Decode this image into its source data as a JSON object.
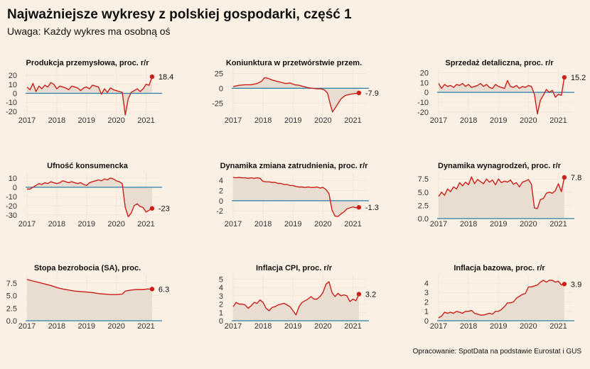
{
  "header": {
    "title": "Najważniejsze wykresy z polskiej gospodarki, część 1",
    "subtitle": "Uwaga: Każdy wykres ma osobną oś"
  },
  "source": "Opracowanie: SpotData na podstawie Eurostat i GUS",
  "colors": {
    "line": "#cc1f1a",
    "area": "#e8ddd0",
    "zero_line": "#2a7fa7",
    "grid": "#f3e6d8",
    "background": "#fbf0e4"
  },
  "chart_data": [
    {
      "type": "area",
      "title": "Produkcja przemysłowa, proc. r/r",
      "x_ticks": [
        "2017",
        "2018",
        "2019",
        "2020",
        "2021"
      ],
      "y_ticks": [
        -20,
        -10,
        0,
        10,
        20
      ],
      "ylim": [
        -24,
        24
      ],
      "x": [
        2017.0,
        2017.1,
        2017.2,
        2017.3,
        2017.4,
        2017.5,
        2017.6,
        2017.7,
        2017.8,
        2017.9,
        2018.0,
        2018.1,
        2018.2,
        2018.3,
        2018.4,
        2018.5,
        2018.6,
        2018.7,
        2018.8,
        2018.9,
        2019.0,
        2019.1,
        2019.2,
        2019.3,
        2019.4,
        2019.5,
        2019.6,
        2019.7,
        2019.8,
        2019.9,
        2020.0,
        2020.1,
        2020.2,
        2020.3,
        2020.4,
        2020.5,
        2020.6,
        2020.7,
        2020.8,
        2020.9,
        2021.0,
        2021.1,
        2021.2
      ],
      "y": [
        7,
        4,
        11,
        2,
        8,
        5,
        9,
        7,
        12,
        10,
        5,
        8,
        7,
        6,
        4,
        8,
        7,
        6,
        3,
        6,
        7,
        5,
        9,
        8,
        7,
        -1,
        5,
        1,
        6,
        4,
        3,
        2,
        1,
        -24,
        -6,
        1,
        3,
        5,
        2,
        5,
        10,
        9,
        18.4
      ],
      "last_label": "18.4"
    },
    {
      "type": "area",
      "title": "Koniunktura w przetwórstwie przem.",
      "x_ticks": [
        "2017",
        "2018",
        "2019",
        "2020",
        "2021"
      ],
      "y_ticks": [
        -25,
        0,
        25
      ],
      "ylim": [
        -45,
        28
      ],
      "x": [
        2017.0,
        2017.2,
        2017.4,
        2017.6,
        2017.8,
        2017.95,
        2018.05,
        2018.15,
        2018.3,
        2018.45,
        2018.6,
        2018.75,
        2018.9,
        2019.05,
        2019.2,
        2019.35,
        2019.5,
        2019.65,
        2019.8,
        2019.95,
        2020.05,
        2020.15,
        2020.25,
        2020.32,
        2020.45,
        2020.6,
        2020.75,
        2020.9,
        2021.05,
        2021.2
      ],
      "y": [
        3,
        5,
        6,
        6,
        8,
        12,
        18,
        17,
        14,
        12,
        10,
        8,
        9,
        6,
        5,
        3,
        1,
        0,
        -1,
        -1,
        -3,
        -8,
        -28,
        -40,
        -30,
        -18,
        -12,
        -10,
        -9,
        -7.9
      ],
      "last_label": "-7.9"
    },
    {
      "type": "area",
      "title": "Sprzedaż detaliczna, proc. r/r",
      "x_ticks": [
        "2017",
        "2018",
        "2019",
        "2020",
        "2021"
      ],
      "y_ticks": [
        -20,
        -10,
        0,
        10,
        20
      ],
      "ylim": [
        -23,
        21
      ],
      "x": [
        2017.0,
        2017.1,
        2017.2,
        2017.3,
        2017.4,
        2017.5,
        2017.6,
        2017.7,
        2017.8,
        2017.9,
        2018.0,
        2018.1,
        2018.2,
        2018.3,
        2018.4,
        2018.5,
        2018.6,
        2018.7,
        2018.8,
        2018.9,
        2019.0,
        2019.1,
        2019.2,
        2019.3,
        2019.4,
        2019.5,
        2019.6,
        2019.7,
        2019.8,
        2019.9,
        2020.0,
        2020.1,
        2020.2,
        2020.3,
        2020.4,
        2020.5,
        2020.6,
        2020.7,
        2020.8,
        2020.9,
        2021.0,
        2021.1,
        2021.2
      ],
      "y": [
        9,
        4,
        8,
        6,
        7,
        5,
        8,
        7,
        9,
        6,
        8,
        5,
        6,
        7,
        9,
        6,
        8,
        5,
        4,
        8,
        6,
        5,
        4,
        12,
        6,
        5,
        7,
        4,
        6,
        5,
        7,
        6,
        -2,
        -22,
        -8,
        -3,
        3,
        0,
        2,
        -5,
        -2,
        -3,
        15.2
      ],
      "last_label": "15.2"
    },
    {
      "type": "area",
      "title": "Ufność konsumencka",
      "x_ticks": [
        "2017",
        "2018",
        "2019",
        "2020",
        "2021"
      ],
      "y_ticks": [
        -30,
        -20,
        -10,
        0,
        10
      ],
      "ylim": [
        -34,
        13
      ],
      "x": [
        2017.0,
        2017.1,
        2017.2,
        2017.3,
        2017.4,
        2017.5,
        2017.6,
        2017.7,
        2017.8,
        2017.9,
        2018.0,
        2018.1,
        2018.2,
        2018.3,
        2018.4,
        2018.5,
        2018.6,
        2018.7,
        2018.8,
        2018.9,
        2019.0,
        2019.1,
        2019.2,
        2019.3,
        2019.4,
        2019.5,
        2019.6,
        2019.7,
        2019.8,
        2019.9,
        2020.0,
        2020.1,
        2020.2,
        2020.3,
        2020.4,
        2020.5,
        2020.6,
        2020.7,
        2020.8,
        2020.9,
        2021.0,
        2021.1,
        2021.2
      ],
      "y": [
        -2,
        -2,
        0,
        2,
        4,
        3,
        5,
        4,
        6,
        5,
        4,
        5,
        7,
        6,
        5,
        6,
        5,
        4,
        5,
        3,
        2,
        5,
        6,
        7,
        8,
        7,
        9,
        8,
        10,
        9,
        7,
        6,
        4,
        -22,
        -32,
        -28,
        -20,
        -18,
        -21,
        -22,
        -27,
        -25,
        -23
      ],
      "last_label": "-23"
    },
    {
      "type": "area",
      "title": "Dynamika zmiana zatrudnienia, proc. r/r",
      "x_ticks": [
        "2017",
        "2018",
        "2019",
        "2020",
        "2021"
      ],
      "y_ticks": [
        -2,
        0,
        2,
        4
      ],
      "ylim": [
        -3.5,
        5
      ],
      "x": [
        2017.0,
        2017.1,
        2017.2,
        2017.3,
        2017.4,
        2017.5,
        2017.6,
        2017.7,
        2017.8,
        2017.9,
        2018.0,
        2018.1,
        2018.2,
        2018.3,
        2018.4,
        2018.5,
        2018.6,
        2018.7,
        2018.8,
        2018.9,
        2019.0,
        2019.1,
        2019.2,
        2019.3,
        2019.4,
        2019.5,
        2019.6,
        2019.7,
        2019.8,
        2019.9,
        2020.0,
        2020.1,
        2020.2,
        2020.3,
        2020.4,
        2020.5,
        2020.6,
        2020.7,
        2020.8,
        2020.9,
        2021.0,
        2021.1,
        2021.2
      ],
      "y": [
        4.6,
        4.5,
        4.6,
        4.5,
        4.5,
        4.4,
        4.5,
        4.4,
        4.5,
        4.4,
        3.8,
        3.7,
        3.7,
        3.6,
        3.6,
        3.4,
        3.4,
        3.2,
        3.2,
        3.0,
        3.0,
        2.8,
        2.7,
        2.7,
        2.6,
        2.7,
        2.6,
        2.6,
        2.7,
        2.5,
        2.6,
        2.2,
        1.4,
        -1.8,
        -3.0,
        -3.1,
        -2.6,
        -2.2,
        -1.6,
        -1.4,
        -1.2,
        -1.4,
        -1.3
      ],
      "last_label": "-1.3"
    },
    {
      "type": "area",
      "title": "Dynamika wynagrodzeń, proc. r/r",
      "x_ticks": [
        "2017",
        "2018",
        "2019",
        "2020",
        "2021"
      ],
      "y_ticks": [
        0,
        2.5,
        5,
        7.5
      ],
      "y_tick_labels": [
        "0.0",
        "2.5",
        "5.0",
        "7.5"
      ],
      "ylim": [
        0,
        8.2
      ],
      "x": [
        2017.0,
        2017.1,
        2017.2,
        2017.3,
        2017.4,
        2017.5,
        2017.6,
        2017.7,
        2017.8,
        2017.9,
        2018.0,
        2018.1,
        2018.2,
        2018.3,
        2018.4,
        2018.5,
        2018.6,
        2018.7,
        2018.8,
        2018.9,
        2019.0,
        2019.1,
        2019.2,
        2019.3,
        2019.4,
        2019.5,
        2019.6,
        2019.7,
        2019.8,
        2019.9,
        2020.0,
        2020.1,
        2020.2,
        2020.3,
        2020.4,
        2020.5,
        2020.6,
        2020.7,
        2020.8,
        2020.9,
        2021.0,
        2021.1,
        2021.2
      ],
      "y": [
        4.2,
        5.0,
        4.4,
        5.6,
        5.1,
        6.0,
        5.6,
        6.8,
        6.2,
        6.9,
        6.4,
        7.9,
        6.6,
        7.4,
        7.0,
        6.6,
        7.5,
        6.9,
        7.3,
        6.4,
        7.5,
        6.8,
        7.1,
        6.9,
        7.3,
        6.5,
        6.8,
        6.0,
        6.9,
        7.1,
        7.4,
        6.5,
        2.0,
        1.9,
        3.6,
        3.8,
        4.8,
        5.0,
        4.8,
        5.3,
        6.6,
        5.1,
        7.8
      ],
      "last_label": "7.8"
    },
    {
      "type": "area",
      "title": "Stopa bezrobocia (SA), proc.",
      "x_ticks": [
        "2017",
        "2018",
        "2019",
        "2020",
        "2021"
      ],
      "y_ticks": [
        0,
        2.5,
        5,
        7.5
      ],
      "y_tick_labels": [
        "0.0",
        "2.5",
        "5.0",
        "7.5"
      ],
      "ylim": [
        0,
        8.6
      ],
      "x": [
        2017.0,
        2017.2,
        2017.4,
        2017.6,
        2017.8,
        2018.0,
        2018.2,
        2018.4,
        2018.6,
        2018.8,
        2019.0,
        2019.2,
        2019.4,
        2019.6,
        2019.8,
        2020.0,
        2020.2,
        2020.3,
        2020.5,
        2020.7,
        2020.9,
        2021.05,
        2021.2
      ],
      "y": [
        8.2,
        7.9,
        7.6,
        7.3,
        7.0,
        6.6,
        6.3,
        6.1,
        5.9,
        5.8,
        5.7,
        5.6,
        5.4,
        5.3,
        5.2,
        5.2,
        5.3,
        5.9,
        6.1,
        6.2,
        6.2,
        6.3,
        6.3
      ],
      "last_label": "6.3"
    },
    {
      "type": "area",
      "title": "Inflacja CPI, proc. r/r",
      "x_ticks": [
        "2017",
        "2018",
        "2019",
        "2020",
        "2021"
      ],
      "y_ticks": [
        0,
        1,
        2,
        3,
        4,
        5
      ],
      "ylim": [
        0,
        5.2
      ],
      "x": [
        2017.0,
        2017.1,
        2017.2,
        2017.3,
        2017.4,
        2017.5,
        2017.6,
        2017.7,
        2017.8,
        2017.9,
        2018.0,
        2018.1,
        2018.2,
        2018.3,
        2018.4,
        2018.5,
        2018.6,
        2018.7,
        2018.8,
        2018.9,
        2019.0,
        2019.1,
        2019.2,
        2019.3,
        2019.4,
        2019.5,
        2019.6,
        2019.7,
        2019.8,
        2019.9,
        2020.0,
        2020.1,
        2020.2,
        2020.3,
        2020.4,
        2020.5,
        2020.6,
        2020.7,
        2020.8,
        2020.9,
        2021.0,
        2021.1,
        2021.2
      ],
      "y": [
        1.7,
        2.2,
        2.0,
        2.0,
        1.9,
        1.5,
        1.8,
        2.2,
        2.1,
        2.5,
        2.2,
        1.5,
        1.2,
        1.6,
        1.7,
        1.9,
        2.0,
        2.1,
        1.9,
        1.7,
        1.2,
        0.7,
        1.7,
        2.2,
        2.4,
        2.6,
        2.9,
        2.6,
        2.6,
        2.9,
        3.4,
        4.4,
        4.7,
        3.4,
        2.9,
        3.3,
        3.0,
        3.1,
        3.0,
        2.3,
        2.6,
        2.4,
        3.2
      ],
      "last_label": "3.2"
    },
    {
      "type": "area",
      "title": "Inflacja bazowa, proc. r/r",
      "x_ticks": [
        "2017",
        "2018",
        "2019",
        "2020",
        "2021"
      ],
      "y_ticks": [
        0,
        1,
        2,
        3,
        4
      ],
      "ylim": [
        0,
        4.6
      ],
      "x": [
        2017.0,
        2017.1,
        2017.2,
        2017.3,
        2017.4,
        2017.5,
        2017.6,
        2017.7,
        2017.8,
        2017.9,
        2018.0,
        2018.1,
        2018.2,
        2018.3,
        2018.4,
        2018.5,
        2018.6,
        2018.7,
        2018.8,
        2018.9,
        2019.0,
        2019.1,
        2019.2,
        2019.3,
        2019.4,
        2019.5,
        2019.6,
        2019.7,
        2019.8,
        2019.9,
        2020.0,
        2020.1,
        2020.2,
        2020.3,
        2020.4,
        2020.5,
        2020.6,
        2020.7,
        2020.8,
        2020.9,
        2021.0,
        2021.1,
        2021.2
      ],
      "y": [
        0.3,
        0.5,
        0.9,
        0.8,
        0.9,
        0.8,
        1.0,
        0.9,
        0.8,
        1.0,
        1.0,
        1.1,
        0.8,
        0.7,
        0.6,
        0.6,
        0.7,
        0.8,
        0.7,
        1.0,
        1.0,
        1.2,
        1.5,
        1.9,
        1.9,
        2.0,
        2.4,
        2.6,
        2.8,
        2.9,
        3.6,
        3.6,
        3.7,
        3.8,
        4.1,
        4.3,
        4.1,
        4.3,
        4.3,
        4.1,
        4.2,
        3.8,
        3.9
      ],
      "last_label": "3.9"
    }
  ]
}
